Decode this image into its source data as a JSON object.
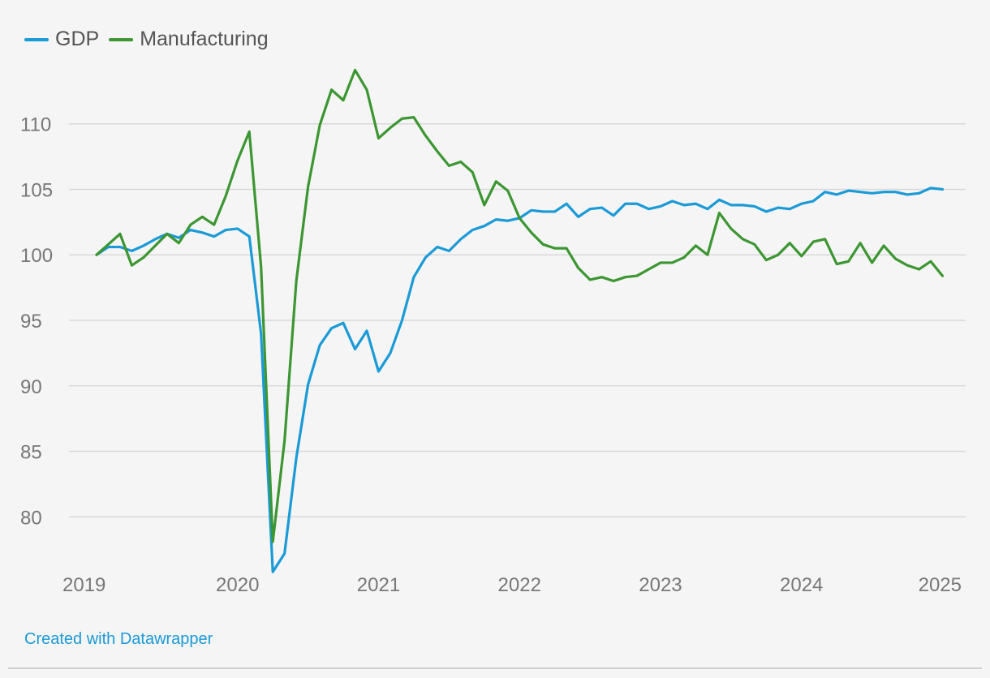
{
  "colors": {
    "gdp": "#1a9ad6",
    "manufacturing": "#3c9632",
    "grid": "#d9d9d9",
    "credit": "#1a9ad6"
  },
  "legend": {
    "items": [
      {
        "label": "GDP",
        "color": "#1a9ad6"
      },
      {
        "label": "Manufacturing",
        "color": "#3c9632"
      }
    ]
  },
  "credit": "Created with Datawrapper",
  "chart_data": {
    "type": "line",
    "title": "",
    "xlabel": "",
    "ylabel": "",
    "xlim": [
      2019,
      2025.17
    ],
    "ylim": [
      75.5,
      114.5
    ],
    "yticks": [
      80,
      85,
      90,
      95,
      100,
      105,
      110
    ],
    "xticks": [
      2019,
      2020,
      2021,
      2022,
      2023,
      2024,
      2025
    ],
    "grid": true,
    "legend_position": "top-left",
    "x_start": 2019,
    "x_step_months": 1,
    "series": [
      {
        "name": "GDP",
        "color": "#1a9ad6",
        "values": [
          100,
          100.6,
          100.6,
          100.3,
          100.7,
          101.2,
          101.6,
          101.3,
          101.9,
          101.7,
          101.4,
          101.9,
          102,
          101.4,
          94,
          75.8,
          77.2,
          84.5,
          90.1,
          93.1,
          94.4,
          94.8,
          92.8,
          94.2,
          91.1,
          92.5,
          95,
          98.3,
          99.8,
          100.6,
          100.3,
          101.2,
          101.9,
          102.2,
          102.7,
          102.6,
          102.8,
          103.4,
          103.3,
          103.3,
          103.9,
          102.9,
          103.5,
          103.6,
          103,
          103.9,
          103.9,
          103.5,
          103.7,
          104.1,
          103.8,
          103.9,
          103.5,
          104.2,
          103.8,
          103.8,
          103.7,
          103.3,
          103.6,
          103.5,
          103.9,
          104.1,
          104.8,
          104.6,
          104.9,
          104.8,
          104.7,
          104.8,
          104.8,
          104.6,
          104.7,
          105.1,
          105
        ]
      },
      {
        "name": "Manufacturing",
        "color": "#3c9632",
        "values": [
          100,
          100.8,
          101.6,
          99.2,
          99.8,
          100.7,
          101.6,
          100.9,
          102.3,
          102.9,
          102.3,
          104.5,
          107.2,
          109.4,
          99.1,
          78.1,
          85.8,
          98,
          105.2,
          109.9,
          112.6,
          111.8,
          114.1,
          112.6,
          108.9,
          109.7,
          110.4,
          110.5,
          109.1,
          107.9,
          106.8,
          107.1,
          106.3,
          103.8,
          105.6,
          104.9,
          102.8,
          101.7,
          100.8,
          100.5,
          100.5,
          99,
          98.1,
          98.3,
          98,
          98.3,
          98.4,
          98.9,
          99.4,
          99.4,
          99.8,
          100.7,
          100,
          103.2,
          102,
          101.2,
          100.8,
          99.6,
          100,
          100.9,
          99.9,
          101,
          101.2,
          99.3,
          99.5,
          100.9,
          99.4,
          100.7,
          99.7,
          99.2,
          98.9,
          99.5,
          98.4
        ]
      }
    ]
  }
}
